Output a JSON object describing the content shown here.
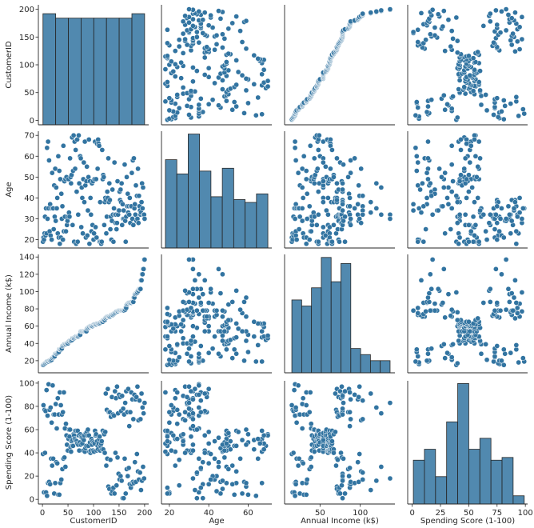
{
  "chart_data": {
    "type": "scatter",
    "kind": "pairplot",
    "color": "#3274a1",
    "variables": [
      "CustomerID",
      "Age",
      "Annual Income (k$)",
      "Spending Score (1-100)"
    ],
    "ranges": [
      [
        -8,
        208
      ],
      [
        16,
        72
      ],
      [
        6,
        143
      ],
      [
        -4,
        102
      ]
    ],
    "ticks": [
      [
        0,
        50,
        100,
        150,
        200
      ],
      [
        20,
        30,
        40,
        50,
        60,
        70
      ],
      [
        20,
        40,
        60,
        80,
        100,
        120,
        140
      ],
      [
        0,
        20,
        40,
        60,
        80,
        100
      ]
    ],
    "x_tick_labels": [
      [
        "0",
        "50",
        "100",
        "150",
        "200"
      ],
      [
        "20",
        "40",
        "60"
      ],
      [
        "50",
        "100"
      ],
      [
        "0",
        "25",
        "50",
        "75",
        "100"
      ]
    ],
    "x_ticks": [
      [
        0,
        50,
        100,
        150,
        200
      ],
      [
        20,
        40,
        60
      ],
      [
        50,
        100
      ],
      [
        0,
        25,
        50,
        75,
        100
      ]
    ],
    "histograms": [
      {
        "variable": "CustomerID",
        "edges": [
          1,
          25.875,
          50.75,
          75.625,
          100.5,
          125.375,
          150.25,
          175.125,
          200
        ],
        "counts": [
          25,
          24,
          24,
          24,
          24,
          24,
          24,
          25
        ],
        "ymax": 27
      },
      {
        "variable": "Age",
        "edges": [
          18,
          23.78,
          29.56,
          35.33,
          41.11,
          46.89,
          52.67,
          58.44,
          64.22,
          70
        ],
        "counts": [
          31,
          26,
          40,
          27,
          18,
          28,
          17,
          16,
          19
        ],
        "ymax": 41
      },
      {
        "variable": "Annual Income (k$)",
        "edges": [
          15,
          27.2,
          39.4,
          51.6,
          63.8,
          76,
          88.2,
          100.4,
          112.6,
          124.8,
          137
        ],
        "counts": [
          24,
          22,
          28,
          38,
          30,
          36,
          8,
          6,
          4,
          4
        ],
        "ymax": 39
      },
      {
        "variable": "Spending Score (1-100)",
        "edges": [
          1,
          10.8,
          20.6,
          30.4,
          40.2,
          50,
          59.8,
          69.6,
          79.4,
          89.2,
          99
        ],
        "counts": [
          16,
          20,
          10,
          30,
          44,
          20,
          24,
          16,
          17,
          3
        ],
        "ymax": 45
      }
    ],
    "customers": [
      [
        1,
        19,
        15,
        39
      ],
      [
        2,
        21,
        15,
        81
      ],
      [
        3,
        20,
        16,
        6
      ],
      [
        4,
        23,
        16,
        77
      ],
      [
        5,
        31,
        17,
        40
      ],
      [
        6,
        22,
        17,
        76
      ],
      [
        7,
        35,
        18,
        6
      ],
      [
        8,
        23,
        18,
        94
      ],
      [
        9,
        64,
        19,
        3
      ],
      [
        10,
        30,
        19,
        72
      ],
      [
        11,
        67,
        19,
        14
      ],
      [
        12,
        35,
        19,
        99
      ],
      [
        13,
        58,
        20,
        15
      ],
      [
        14,
        24,
        20,
        77
      ],
      [
        15,
        37,
        20,
        13
      ],
      [
        16,
        22,
        20,
        79
      ],
      [
        17,
        35,
        21,
        35
      ],
      [
        18,
        20,
        21,
        66
      ],
      [
        19,
        52,
        23,
        29
      ],
      [
        20,
        35,
        23,
        98
      ],
      [
        21,
        35,
        24,
        35
      ],
      [
        22,
        25,
        24,
        73
      ],
      [
        23,
        46,
        25,
        5
      ],
      [
        24,
        31,
        25,
        73
      ],
      [
        25,
        54,
        28,
        14
      ],
      [
        26,
        29,
        28,
        82
      ],
      [
        27,
        45,
        28,
        32
      ],
      [
        28,
        35,
        28,
        61
      ],
      [
        29,
        40,
        29,
        31
      ],
      [
        30,
        23,
        29,
        87
      ],
      [
        31,
        60,
        30,
        4
      ],
      [
        32,
        21,
        30,
        73
      ],
      [
        33,
        53,
        33,
        4
      ],
      [
        34,
        18,
        33,
        92
      ],
      [
        35,
        49,
        33,
        14
      ],
      [
        36,
        21,
        33,
        81
      ],
      [
        37,
        42,
        34,
        17
      ],
      [
        38,
        30,
        34,
        73
      ],
      [
        39,
        36,
        37,
        26
      ],
      [
        40,
        20,
        37,
        75
      ],
      [
        41,
        65,
        38,
        35
      ],
      [
        42,
        24,
        38,
        92
      ],
      [
        43,
        48,
        39,
        36
      ],
      [
        44,
        31,
        39,
        61
      ],
      [
        45,
        49,
        39,
        28
      ],
      [
        46,
        24,
        39,
        65
      ],
      [
        47,
        50,
        40,
        55
      ],
      [
        48,
        27,
        40,
        47
      ],
      [
        49,
        29,
        40,
        42
      ],
      [
        50,
        31,
        40,
        42
      ],
      [
        51,
        49,
        42,
        52
      ],
      [
        52,
        33,
        42,
        60
      ],
      [
        53,
        31,
        43,
        54
      ],
      [
        54,
        59,
        43,
        60
      ],
      [
        55,
        50,
        43,
        45
      ],
      [
        56,
        47,
        43,
        41
      ],
      [
        57,
        51,
        44,
        50
      ],
      [
        58,
        69,
        44,
        46
      ],
      [
        59,
        27,
        46,
        51
      ],
      [
        60,
        53,
        46,
        46
      ],
      [
        61,
        70,
        46,
        56
      ],
      [
        62,
        19,
        46,
        55
      ],
      [
        63,
        67,
        47,
        52
      ],
      [
        64,
        54,
        47,
        59
      ],
      [
        65,
        63,
        48,
        51
      ],
      [
        66,
        18,
        48,
        59
      ],
      [
        67,
        43,
        48,
        50
      ],
      [
        68,
        68,
        48,
        48
      ],
      [
        69,
        19,
        48,
        59
      ],
      [
        70,
        32,
        48,
        47
      ],
      [
        71,
        70,
        49,
        55
      ],
      [
        72,
        47,
        49,
        42
      ],
      [
        73,
        60,
        50,
        49
      ],
      [
        74,
        60,
        50,
        56
      ],
      [
        75,
        59,
        54,
        47
      ],
      [
        76,
        26,
        54,
        54
      ],
      [
        77,
        45,
        54,
        53
      ],
      [
        78,
        40,
        54,
        48
      ],
      [
        79,
        23,
        54,
        52
      ],
      [
        80,
        49,
        54,
        42
      ],
      [
        81,
        57,
        54,
        51
      ],
      [
        82,
        38,
        54,
        55
      ],
      [
        83,
        67,
        54,
        41
      ],
      [
        84,
        46,
        54,
        44
      ],
      [
        85,
        21,
        54,
        57
      ],
      [
        86,
        48,
        54,
        46
      ],
      [
        87,
        55,
        57,
        58
      ],
      [
        88,
        22,
        57,
        55
      ],
      [
        89,
        34,
        58,
        60
      ],
      [
        90,
        50,
        58,
        46
      ],
      [
        91,
        68,
        59,
        55
      ],
      [
        92,
        18,
        59,
        41
      ],
      [
        93,
        48,
        60,
        49
      ],
      [
        94,
        40,
        60,
        40
      ],
      [
        95,
        32,
        60,
        42
      ],
      [
        96,
        24,
        60,
        52
      ],
      [
        97,
        47,
        60,
        47
      ],
      [
        98,
        27,
        60,
        50
      ],
      [
        99,
        48,
        61,
        42
      ],
      [
        100,
        20,
        61,
        49
      ],
      [
        101,
        23,
        62,
        41
      ],
      [
        102,
        49,
        62,
        48
      ],
      [
        103,
        67,
        62,
        59
      ],
      [
        104,
        26,
        62,
        55
      ],
      [
        105,
        49,
        62,
        56
      ],
      [
        106,
        21,
        62,
        42
      ],
      [
        107,
        66,
        63,
        50
      ],
      [
        108,
        54,
        63,
        46
      ],
      [
        109,
        68,
        63,
        43
      ],
      [
        110,
        66,
        63,
        48
      ],
      [
        111,
        65,
        63,
        52
      ],
      [
        112,
        19,
        63,
        54
      ],
      [
        113,
        38,
        64,
        42
      ],
      [
        114,
        19,
        64,
        46
      ],
      [
        115,
        18,
        65,
        48
      ],
      [
        116,
        19,
        65,
        50
      ],
      [
        117,
        63,
        65,
        43
      ],
      [
        118,
        49,
        65,
        59
      ],
      [
        119,
        51,
        67,
        43
      ],
      [
        120,
        50,
        67,
        57
      ],
      [
        121,
        27,
        67,
        56
      ],
      [
        122,
        38,
        67,
        40
      ],
      [
        123,
        40,
        69,
        58
      ],
      [
        124,
        39,
        69,
        91
      ],
      [
        125,
        23,
        70,
        29
      ],
      [
        126,
        31,
        70,
        77
      ],
      [
        127,
        43,
        71,
        35
      ],
      [
        128,
        40,
        71,
        95
      ],
      [
        129,
        59,
        71,
        11
      ],
      [
        130,
        38,
        71,
        75
      ],
      [
        131,
        47,
        71,
        9
      ],
      [
        132,
        39,
        71,
        75
      ],
      [
        133,
        25,
        72,
        34
      ],
      [
        134,
        31,
        72,
        71
      ],
      [
        135,
        20,
        73,
        5
      ],
      [
        136,
        29,
        73,
        88
      ],
      [
        137,
        44,
        73,
        7
      ],
      [
        138,
        32,
        73,
        73
      ],
      [
        139,
        19,
        74,
        10
      ],
      [
        140,
        35,
        74,
        72
      ],
      [
        141,
        57,
        75,
        5
      ],
      [
        142,
        32,
        75,
        93
      ],
      [
        143,
        28,
        76,
        40
      ],
      [
        144,
        32,
        76,
        87
      ],
      [
        145,
        25,
        77,
        12
      ],
      [
        146,
        28,
        77,
        97
      ],
      [
        147,
        48,
        77,
        36
      ],
      [
        148,
        32,
        77,
        74
      ],
      [
        149,
        34,
        78,
        22
      ],
      [
        150,
        34,
        78,
        90
      ],
      [
        151,
        43,
        78,
        17
      ],
      [
        152,
        39,
        78,
        88
      ],
      [
        153,
        44,
        78,
        20
      ],
      [
        154,
        38,
        78,
        76
      ],
      [
        155,
        47,
        78,
        16
      ],
      [
        156,
        27,
        78,
        89
      ],
      [
        157,
        37,
        78,
        1
      ],
      [
        158,
        30,
        78,
        78
      ],
      [
        159,
        34,
        78,
        1
      ],
      [
        160,
        30,
        78,
        73
      ],
      [
        161,
        56,
        79,
        35
      ],
      [
        162,
        29,
        79,
        83
      ],
      [
        163,
        19,
        81,
        5
      ],
      [
        164,
        31,
        81,
        93
      ],
      [
        165,
        50,
        85,
        26
      ],
      [
        166,
        36,
        85,
        75
      ],
      [
        167,
        42,
        86,
        20
      ],
      [
        168,
        33,
        86,
        95
      ],
      [
        169,
        36,
        87,
        27
      ],
      [
        170,
        32,
        87,
        63
      ],
      [
        171,
        40,
        87,
        13
      ],
      [
        172,
        28,
        87,
        75
      ],
      [
        173,
        36,
        87,
        10
      ],
      [
        174,
        36,
        87,
        92
      ],
      [
        175,
        52,
        88,
        13
      ],
      [
        176,
        30,
        88,
        86
      ],
      [
        177,
        58,
        88,
        15
      ],
      [
        178,
        27,
        88,
        69
      ],
      [
        179,
        59,
        93,
        14
      ],
      [
        180,
        35,
        93,
        90
      ],
      [
        181,
        37,
        97,
        32
      ],
      [
        182,
        32,
        97,
        86
      ],
      [
        183,
        46,
        98,
        15
      ],
      [
        184,
        29,
        98,
        88
      ],
      [
        185,
        41,
        99,
        39
      ],
      [
        186,
        30,
        99,
        97
      ],
      [
        187,
        54,
        101,
        24
      ],
      [
        188,
        28,
        101,
        68
      ],
      [
        189,
        41,
        103,
        17
      ],
      [
        190,
        36,
        103,
        85
      ],
      [
        191,
        34,
        103,
        23
      ],
      [
        192,
        32,
        103,
        69
      ],
      [
        193,
        33,
        113,
        8
      ],
      [
        194,
        38,
        113,
        91
      ],
      [
        195,
        47,
        120,
        16
      ],
      [
        196,
        35,
        120,
        79
      ],
      [
        197,
        45,
        126,
        28
      ],
      [
        198,
        32,
        126,
        74
      ],
      [
        199,
        32,
        137,
        18
      ],
      [
        200,
        30,
        137,
        83
      ]
    ]
  }
}
